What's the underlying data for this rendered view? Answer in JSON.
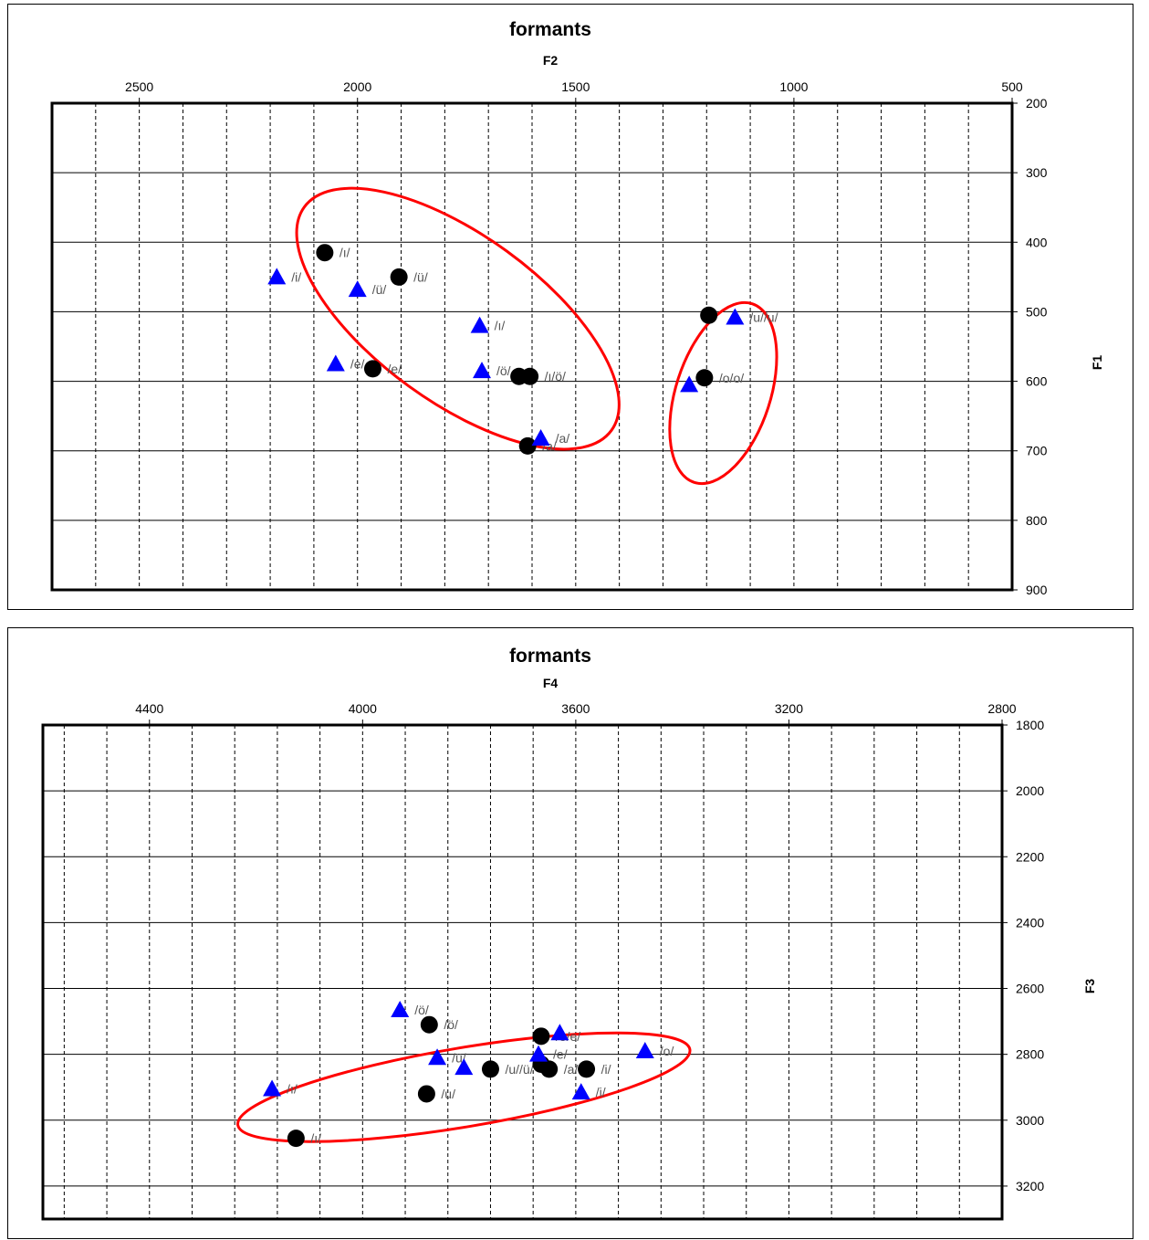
{
  "chart_data": [
    {
      "type": "scatter",
      "title": "formants",
      "xlabel": "F2",
      "ylabel": "F1",
      "x_axis_position": "top",
      "y_axis_position": "right",
      "x_reversed": true,
      "y_reversed": true,
      "xlim": [
        2700,
        500
      ],
      "ylim": [
        200,
        900
      ],
      "xticks": [
        2500,
        2000,
        1500,
        1000,
        500
      ],
      "yticks": [
        200,
        300,
        400,
        500,
        600,
        700,
        800,
        900
      ],
      "x_minor_step": 100,
      "grid": true,
      "series": [
        {
          "marker": "circle",
          "color": "#000000",
          "points": [
            {
              "x": 2075,
              "y": 415,
              "label": "/ı/"
            },
            {
              "x": 1905,
              "y": 450,
              "label": "/ü/"
            },
            {
              "x": 1965,
              "y": 582,
              "label": "/e/"
            },
            {
              "x": 1630,
              "y": 593,
              "label": ""
            },
            {
              "x": 1605,
              "y": 593,
              "label": "/ı/ö/"
            },
            {
              "x": 1610,
              "y": 693,
              "label": "/a/"
            },
            {
              "x": 1195,
              "y": 505,
              "label": ""
            },
            {
              "x": 1205,
              "y": 595,
              "label": "/o/o/"
            }
          ]
        },
        {
          "marker": "triangle",
          "color": "#0000ff",
          "points": [
            {
              "x": 2185,
              "y": 450,
              "label": "/i/"
            },
            {
              "x": 2000,
              "y": 468,
              "label": "/ü/"
            },
            {
              "x": 1720,
              "y": 520,
              "label": "/ı/"
            },
            {
              "x": 2050,
              "y": 575,
              "label": "/e/"
            },
            {
              "x": 1715,
              "y": 585,
              "label": "/ö/"
            },
            {
              "x": 1580,
              "y": 682,
              "label": "/a/"
            },
            {
              "x": 1135,
              "y": 508,
              "label": "/u//u/"
            },
            {
              "x": 1240,
              "y": 605,
              "label": ""
            }
          ]
        }
      ],
      "annotations": [
        {
          "shape": "ellipse",
          "color": "#ff0000",
          "cx": 1770,
          "cy": 510,
          "rx": 435,
          "ry": 120,
          "angle": 36
        },
        {
          "shape": "ellipse",
          "color": "#ff0000",
          "cx": 1162,
          "cy": 617,
          "rx": 215,
          "ry": 68,
          "angle": 108
        }
      ]
    },
    {
      "type": "scatter",
      "title": "formants",
      "xlabel": "F4",
      "ylabel": "F3",
      "x_axis_position": "top",
      "y_axis_position": "right",
      "x_reversed": true,
      "y_reversed": true,
      "xlim": [
        4600,
        2800
      ],
      "ylim": [
        1800,
        3300
      ],
      "xticks": [
        4400,
        4000,
        3600,
        3200,
        2800
      ],
      "yticks": [
        1800,
        2000,
        2200,
        2400,
        2600,
        2800,
        3000,
        3200
      ],
      "x_minor_step": 80,
      "grid": true,
      "series": [
        {
          "marker": "circle",
          "color": "#000000",
          "points": [
            {
              "x": 4125,
              "y": 3055,
              "label": "/ı/"
            },
            {
              "x": 3875,
              "y": 2710,
              "label": "/ö/"
            },
            {
              "x": 3880,
              "y": 2920,
              "label": "/u/"
            },
            {
              "x": 3760,
              "y": 2845,
              "label": "/u//ü/"
            },
            {
              "x": 3665,
              "y": 2745,
              "label": "/o/e/"
            },
            {
              "x": 3665,
              "y": 2830,
              "label": ""
            },
            {
              "x": 3650,
              "y": 2845,
              "label": "/a/"
            },
            {
              "x": 3580,
              "y": 2845,
              "label": "/i/"
            }
          ]
        },
        {
          "marker": "triangle",
          "color": "#0000ff",
          "points": [
            {
              "x": 4170,
              "y": 2905,
              "label": "/ı/"
            },
            {
              "x": 3930,
              "y": 2665,
              "label": "/ö/"
            },
            {
              "x": 3860,
              "y": 2810,
              "label": "/ü/"
            },
            {
              "x": 3810,
              "y": 2840,
              "label": ""
            },
            {
              "x": 3630,
              "y": 2735,
              "label": ""
            },
            {
              "x": 3670,
              "y": 2800,
              "label": "/e/"
            },
            {
              "x": 3590,
              "y": 2915,
              "label": "/i/"
            },
            {
              "x": 3470,
              "y": 2790,
              "label": "/o/"
            }
          ]
        }
      ],
      "annotations": [
        {
          "shape": "ellipse",
          "color": "#ff0000",
          "cx": 3810,
          "cy": 2900,
          "rx": 430,
          "ry": 120,
          "angle": -9.5
        }
      ]
    }
  ]
}
